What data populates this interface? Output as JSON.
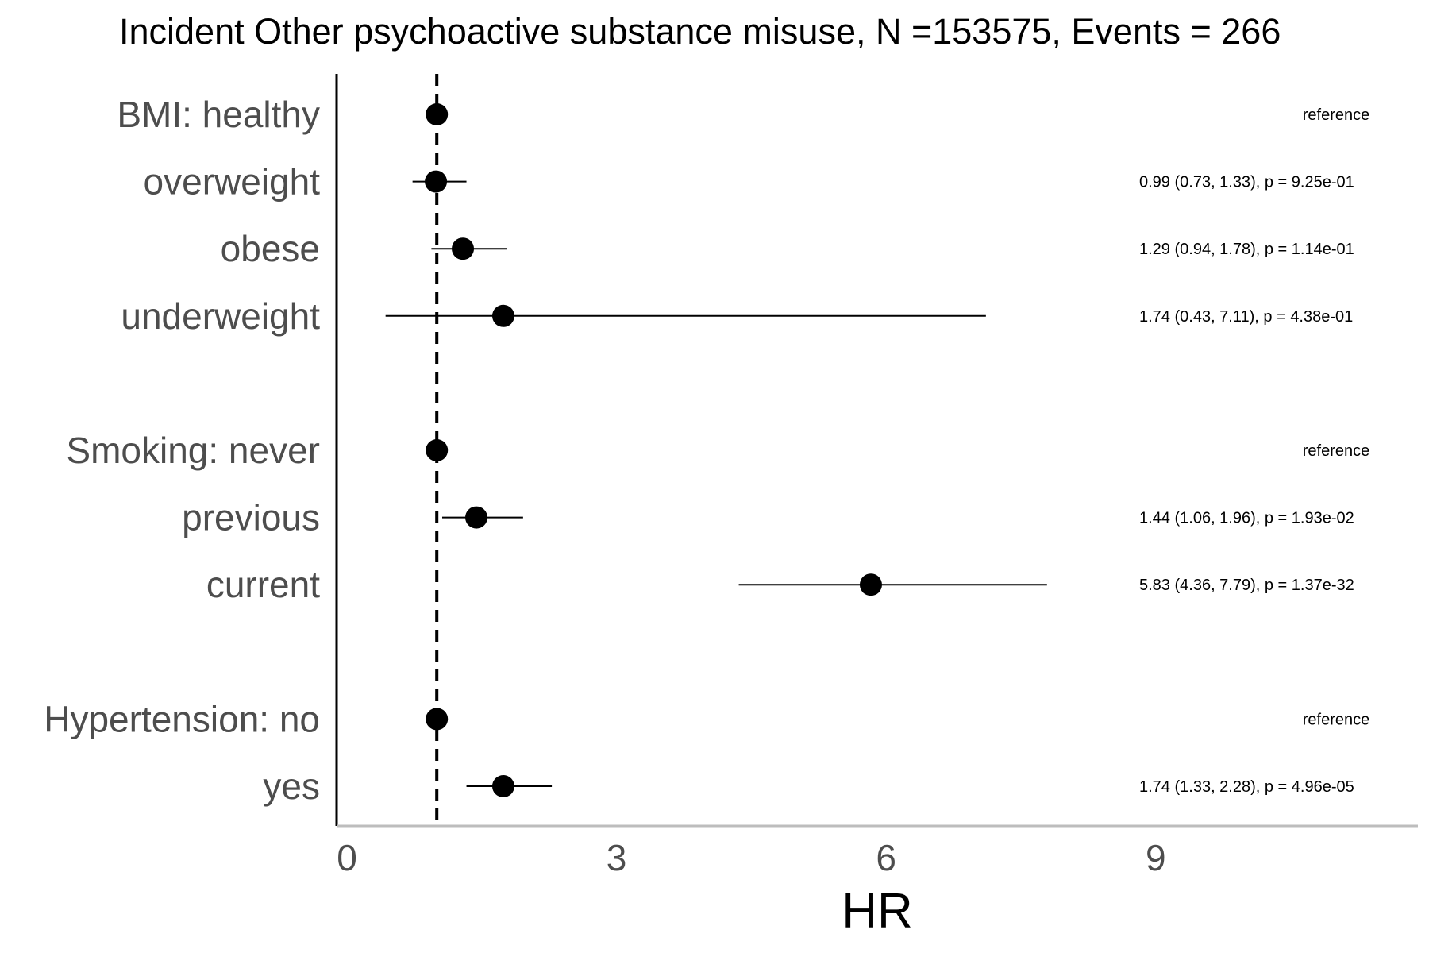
{
  "chart_data": {
    "type": "forest",
    "title": "Incident Other psychoactive substance misuse, N =153575, Events = 266",
    "xlabel": "HR",
    "xlim": [
      0,
      12
    ],
    "xticks": [
      0,
      3,
      6,
      9
    ],
    "reference_line": 1,
    "rows": [
      {
        "label": "BMI: healthy",
        "hr": 1,
        "annotation": "reference",
        "is_reference": true
      },
      {
        "label": "overweight",
        "hr": 0.99,
        "lower": 0.73,
        "upper": 1.33,
        "annotation": "0.99 (0.73, 1.33), p = 9.25e-01"
      },
      {
        "label": "obese",
        "hr": 1.29,
        "lower": 0.94,
        "upper": 1.78,
        "annotation": "1.29 (0.94, 1.78), p = 1.14e-01"
      },
      {
        "label": "underweight",
        "hr": 1.74,
        "lower": 0.43,
        "upper": 7.11,
        "annotation": "1.74 (0.43, 7.11), p = 4.38e-01"
      },
      {
        "label": "Smoking: never",
        "hr": 1,
        "annotation": "reference",
        "is_reference": true
      },
      {
        "label": "previous",
        "hr": 1.44,
        "lower": 1.06,
        "upper": 1.96,
        "annotation": "1.44 (1.06, 1.96), p = 1.93e-02"
      },
      {
        "label": "current",
        "hr": 5.83,
        "lower": 4.36,
        "upper": 7.79,
        "annotation": "5.83 (4.36, 7.79), p = 1.37e-32"
      },
      {
        "label": "Hypertension: no",
        "hr": 1,
        "annotation": "reference",
        "is_reference": true
      },
      {
        "label": "yes",
        "hr": 1.74,
        "lower": 1.33,
        "upper": 2.28,
        "annotation": "1.74 (1.33, 2.28), p = 4.96e-05"
      }
    ]
  },
  "colors": {
    "point": "#000000",
    "ci_line": "#000000",
    "reference_line": "#000000",
    "row_label": "#4d4d4d",
    "axis_tick_label": "#4d4d4d",
    "x_axis_line": "#bdbdbd"
  }
}
